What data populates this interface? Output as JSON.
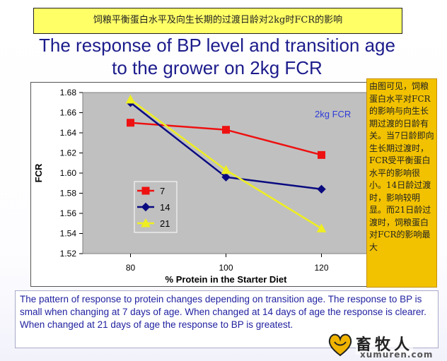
{
  "banner_cn": "饲粮平衡蛋白水平及向生长期的过渡日龄对2kg时FCR的影响",
  "title_line1": "The response of BP level and transition age",
  "title_line2": "to the grower on 2kg FCR",
  "side_note": "由图可见，饲粮蛋白水平对FCR的影响与向生长期过渡的日龄有关。当7日龄即向生长期过渡时，FCR受平衡蛋白水平的影响很小。14日龄过渡时，影响较明显。而21日龄过渡时，饲粮蛋白对FCR的影响最大",
  "caption": "The pattern of response to protein changes depending on transition age. The response to BP is small when changing at 7 days of age. When changed at 14 days of age the response is clearer. When changed at 21 days of age the response to BP is greatest.",
  "watermark": {
    "name": "畜牧人",
    "url": "xumuren.com"
  },
  "colors": {
    "banner_bg": "#ffff66",
    "title": "#1c1c8c",
    "plot_bg": "#c0c0c0",
    "series_7": "#ee1111",
    "series_14": "#0a0a80",
    "series_21": "#eeee22",
    "note_bg": "#f2c200",
    "caption_text": "#1f1fa0",
    "annotation": "#2d3bd8"
  },
  "chart_data": {
    "type": "line",
    "x": [
      80,
      100,
      120
    ],
    "x_tick_labels": [
      "80",
      "100",
      "120"
    ],
    "xlabel": "% Protein in the Starter Diet",
    "ylabel": "FCR",
    "ylim": [
      1.52,
      1.68
    ],
    "y_ticks": [
      1.52,
      1.54,
      1.56,
      1.58,
      1.6,
      1.62,
      1.64,
      1.66,
      1.68
    ],
    "y_tick_labels": [
      "1.52",
      "1.54",
      "1.56",
      "1.58",
      "1.60",
      "1.62",
      "1.64",
      "1.66",
      "1.68"
    ],
    "annotation": "2kg FCR",
    "grid": false,
    "legend_position": "left-lower",
    "series": [
      {
        "name": "7",
        "values": [
          1.65,
          1.643,
          1.618
        ],
        "color": "#ee1111",
        "marker": "square"
      },
      {
        "name": "14",
        "values": [
          1.67,
          1.596,
          1.584
        ],
        "color": "#0a0a80",
        "marker": "diamond"
      },
      {
        "name": "21",
        "values": [
          1.673,
          1.603,
          1.545
        ],
        "color": "#eeee22",
        "marker": "triangle"
      }
    ]
  }
}
